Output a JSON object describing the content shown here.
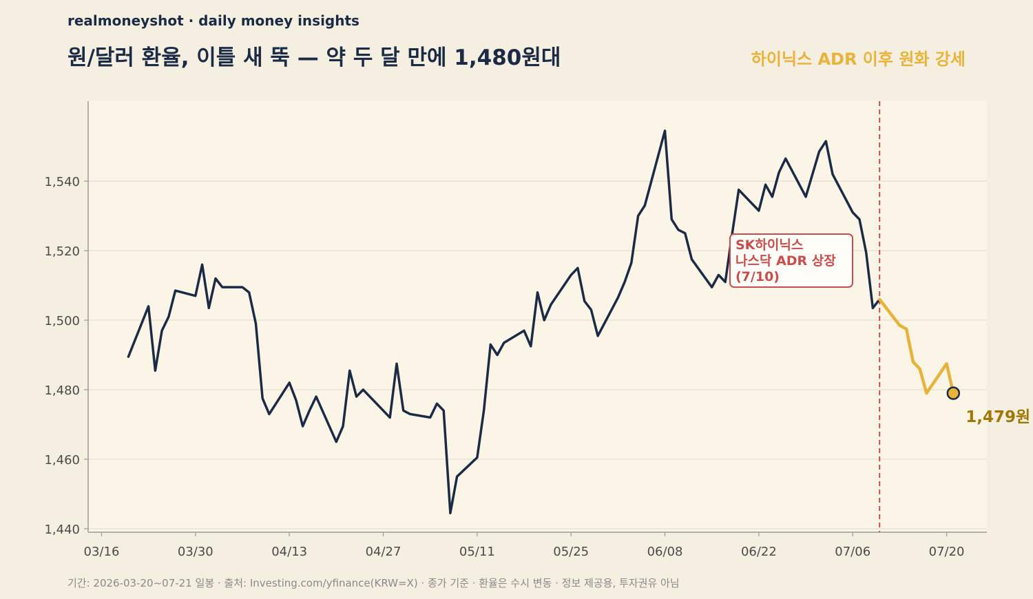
{
  "header": {
    "brand": "realmoneyshot · daily money insights",
    "title": "원/달러 환율, 이틀 새 뚝 — 약 두 달 만에 1,480원대",
    "subtitle": "하이닉스 ADR 이후 원화 강세"
  },
  "footer": {
    "note": "기간: 2026-03-20~07-21 일봉 · 출처: Investing.com/yfinance(KRW=X) · 종가 기준 · 환율은 수시 변동 · 정보 제공용, 투자권유 아님"
  },
  "colors": {
    "background": "#f5efe1",
    "plot_background": "#fbf5e8",
    "main_line": "#1b2a45",
    "post_event_line": "#e8b339",
    "event_line": "#c94c4c",
    "end_label": "#a07800"
  },
  "chart_data": {
    "type": "line",
    "x_start": "2026-03-20",
    "x_end": "2026-07-21",
    "xlim": [
      "2026-03-14",
      "2026-07-26"
    ],
    "ylim": [
      1439,
      1563
    ],
    "yticks": [
      1440,
      1460,
      1480,
      1500,
      1520,
      1540
    ],
    "ytick_labels": [
      "1,440",
      "1,460",
      "1,480",
      "1,500",
      "1,520",
      "1,540"
    ],
    "xticks": [
      "2026-03-16",
      "2026-03-30",
      "2026-04-13",
      "2026-04-27",
      "2026-05-11",
      "2026-05-25",
      "2026-06-08",
      "2026-06-22",
      "2026-07-06",
      "2026-07-20"
    ],
    "xtick_labels": [
      "03/16",
      "03/30",
      "04/13",
      "04/27",
      "05/11",
      "05/25",
      "06/08",
      "06/22",
      "07/06",
      "07/20"
    ],
    "grid": "horizontal",
    "event": {
      "date": "2026-07-10",
      "label_lines": [
        "SK하이닉스",
        "나스닥 ADR 상장",
        "(7/10)"
      ]
    },
    "end_label": "1,479원",
    "series": [
      {
        "values": [
          [
            "2026-03-20",
            1489.5
          ],
          [
            "2026-03-23",
            1504
          ],
          [
            "2026-03-24",
            1485.5
          ],
          [
            "2026-03-25",
            1497
          ],
          [
            "2026-03-26",
            1501
          ],
          [
            "2026-03-27",
            1508.5
          ],
          [
            "2026-03-30",
            1507
          ],
          [
            "2026-03-31",
            1516
          ],
          [
            "2026-04-01",
            1503.5
          ],
          [
            "2026-04-02",
            1512
          ],
          [
            "2026-04-03",
            1509.5
          ],
          [
            "2026-04-06",
            1509.5
          ],
          [
            "2026-04-07",
            1508
          ],
          [
            "2026-04-08",
            1499
          ],
          [
            "2026-04-09",
            1477.5
          ],
          [
            "2026-04-10",
            1473
          ],
          [
            "2026-04-13",
            1482
          ],
          [
            "2026-04-14",
            1477
          ],
          [
            "2026-04-15",
            1469.5
          ],
          [
            "2026-04-16",
            1474
          ],
          [
            "2026-04-17",
            1478
          ],
          [
            "2026-04-20",
            1465
          ],
          [
            "2026-04-21",
            1469.5
          ],
          [
            "2026-04-22",
            1485.5
          ],
          [
            "2026-04-23",
            1478
          ],
          [
            "2026-04-24",
            1480
          ],
          [
            "2026-04-27",
            1474
          ],
          [
            "2026-04-28",
            1472
          ],
          [
            "2026-04-29",
            1487.5
          ],
          [
            "2026-04-30",
            1474
          ],
          [
            "2026-05-01",
            1473
          ],
          [
            "2026-05-04",
            1472
          ],
          [
            "2026-05-05",
            1476
          ],
          [
            "2026-05-06",
            1474
          ],
          [
            "2026-05-07",
            1444.5
          ],
          [
            "2026-05-08",
            1455
          ],
          [
            "2026-05-11",
            1460.5
          ],
          [
            "2026-05-12",
            1474
          ],
          [
            "2026-05-13",
            1493
          ],
          [
            "2026-05-14",
            1490
          ],
          [
            "2026-05-15",
            1493.5
          ],
          [
            "2026-05-18",
            1497
          ],
          [
            "2026-05-19",
            1492.5
          ],
          [
            "2026-05-20",
            1508
          ],
          [
            "2026-05-21",
            1500
          ],
          [
            "2026-05-22",
            1504.5
          ],
          [
            "2026-05-25",
            1513
          ],
          [
            "2026-05-26",
            1515
          ],
          [
            "2026-05-27",
            1505.5
          ],
          [
            "2026-05-28",
            1503
          ],
          [
            "2026-05-29",
            1495.5
          ],
          [
            "2026-06-01",
            1506.5
          ],
          [
            "2026-06-02",
            1511
          ],
          [
            "2026-06-03",
            1516.5
          ],
          [
            "2026-06-04",
            1530
          ],
          [
            "2026-06-05",
            1533
          ],
          [
            "2026-06-08",
            1554.5
          ],
          [
            "2026-06-09",
            1529
          ],
          [
            "2026-06-10",
            1526
          ],
          [
            "2026-06-11",
            1525
          ],
          [
            "2026-06-12",
            1517.5
          ],
          [
            "2026-06-15",
            1509.5
          ],
          [
            "2026-06-16",
            1513
          ],
          [
            "2026-06-17",
            1511
          ],
          [
            "2026-06-18",
            1524.5
          ],
          [
            "2026-06-19",
            1537.5
          ],
          [
            "2026-06-22",
            1531.5
          ],
          [
            "2026-06-23",
            1539
          ],
          [
            "2026-06-24",
            1535.5
          ],
          [
            "2026-06-25",
            1542.5
          ],
          [
            "2026-06-26",
            1546.5
          ],
          [
            "2026-06-29",
            1535.5
          ],
          [
            "2026-06-30",
            1542
          ],
          [
            "2026-07-01",
            1548.5
          ],
          [
            "2026-07-02",
            1551.5
          ],
          [
            "2026-07-03",
            1542
          ],
          [
            "2026-07-06",
            1531
          ],
          [
            "2026-07-07",
            1529
          ],
          [
            "2026-07-08",
            1519.5
          ],
          [
            "2026-07-09",
            1503.5
          ],
          [
            "2026-07-10",
            1506
          ]
        ]
      },
      {
        "values": [
          [
            "2026-07-10",
            1506
          ],
          [
            "2026-07-13",
            1498.5
          ],
          [
            "2026-07-14",
            1497.5
          ],
          [
            "2026-07-15",
            1488
          ],
          [
            "2026-07-16",
            1486
          ],
          [
            "2026-07-17",
            1479
          ],
          [
            "2026-07-20",
            1487.5
          ],
          [
            "2026-07-21",
            1479
          ]
        ]
      }
    ]
  }
}
